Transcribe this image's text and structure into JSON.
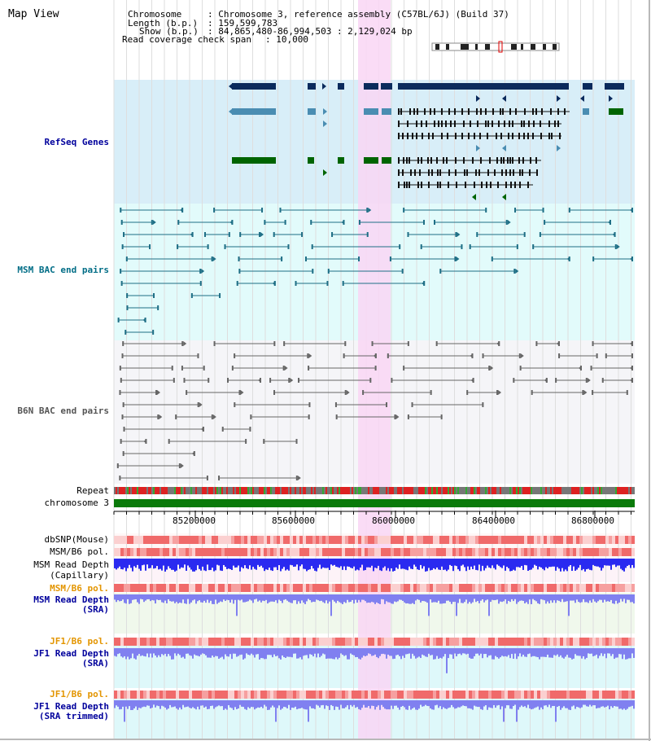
{
  "title": "Map View",
  "info": {
    "chromosome_label": "Chromosome",
    "chromosome_value": ": Chromosome 3, reference assembly (C57BL/6J) (Build 37)",
    "length_label": "Length (b.p.)",
    "length_value": ": 159,599,783",
    "show_label": "Show (b.p.)",
    "show_value": ": 84,865,480-86,994,503 : 2,129,024 bp",
    "span_label": "Read coverage check span",
    "span_value": ": 10,000"
  },
  "tracks": {
    "refseq": "RefSeq Genes",
    "msm_bac": "MSM BAC end pairs",
    "b6n_bac": "B6N BAC end pairs",
    "repeat": "Repeat",
    "chromosome": "chromosome 3",
    "dbsnp": "dbSNP(Mouse)",
    "msm_b6_pol_1": "MSM/B6 pol.",
    "msm_read_depth_cap_1": "MSM Read Depth",
    "msm_read_depth_cap_2": "(Capillary)",
    "msm_b6_pol_2": "MSM/B6 pol.",
    "msm_read_depth_sra_1": "MSM Read Depth",
    "msm_read_depth_sra_2": "(SRA)",
    "jf1_b6_pol_1": "JF1/B6 pol.",
    "jf1_read_depth_sra_1": "JF1 Read Depth",
    "jf1_read_depth_sra_2": "(SRA)",
    "jf1_b6_pol_2": "JF1/B6 pol.",
    "jf1_read_depth_trim_1": "JF1 Read Depth",
    "jf1_read_depth_trim_2": "(SRA trimmed)"
  },
  "axis_ticks": [
    "85200000",
    "85600000",
    "86000000",
    "86400000",
    "86800000"
  ],
  "colors": {
    "refseq_bg": "#d8eef8",
    "msm_bg": "#e2fbfb",
    "b6n_bg": "#f5f5f8",
    "highlight": "#f9d6f4",
    "gene_dark": "#0a2a5c",
    "gene_mid": "#4a8db2",
    "gene_green": "#006400",
    "gene_black": "#111111",
    "bac_teal": "#1f6f86",
    "bac_grey": "#666666",
    "chromosome_bar": "#0a7a0a",
    "snp_red": "#f07070",
    "depth_blue": "#2a2af0",
    "depth_lavender": "#8080f0"
  }
}
